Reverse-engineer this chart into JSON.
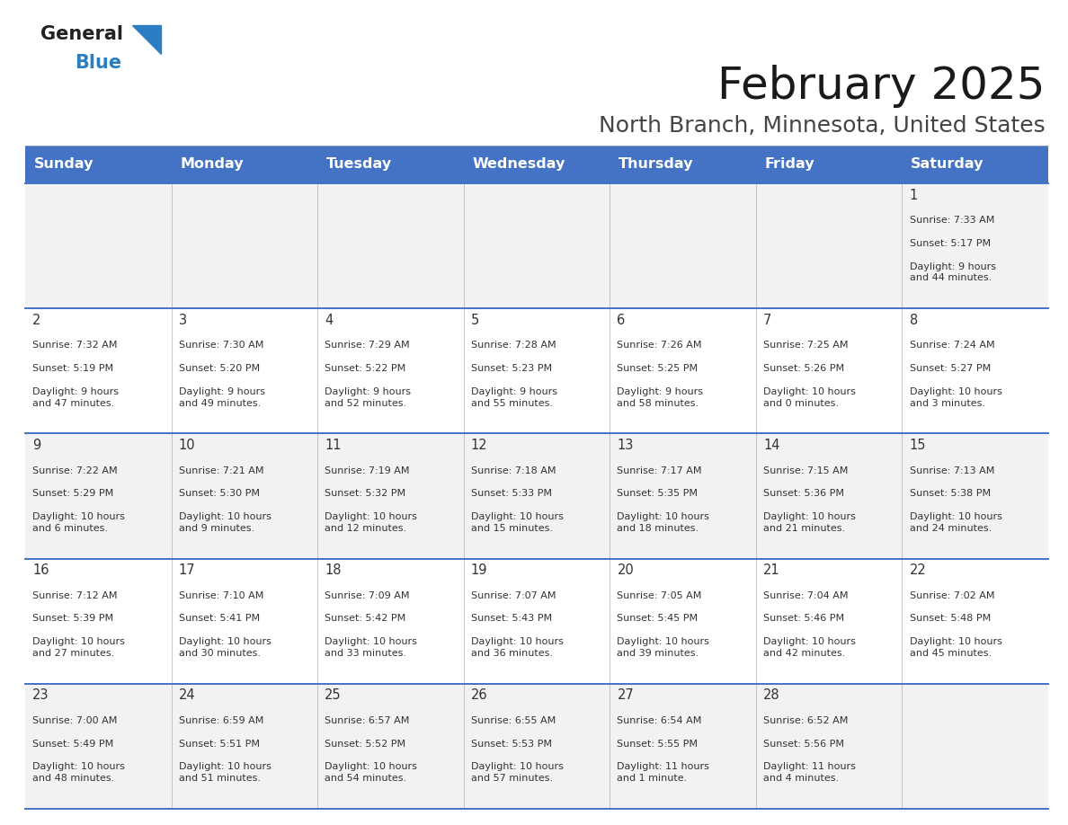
{
  "title": "February 2025",
  "subtitle": "North Branch, Minnesota, United States",
  "header_color": "#4472C4",
  "header_text_color": "#FFFFFF",
  "background_color": "#FFFFFF",
  "cell_bg_even": "#F2F2F2",
  "cell_bg_odd": "#FFFFFF",
  "line_color": "#4472C4",
  "days_of_week": [
    "Sunday",
    "Monday",
    "Tuesday",
    "Wednesday",
    "Thursday",
    "Friday",
    "Saturday"
  ],
  "calendar_data": [
    [
      {
        "day": "",
        "sunrise": "",
        "sunset": "",
        "daylight": ""
      },
      {
        "day": "",
        "sunrise": "",
        "sunset": "",
        "daylight": ""
      },
      {
        "day": "",
        "sunrise": "",
        "sunset": "",
        "daylight": ""
      },
      {
        "day": "",
        "sunrise": "",
        "sunset": "",
        "daylight": ""
      },
      {
        "day": "",
        "sunrise": "",
        "sunset": "",
        "daylight": ""
      },
      {
        "day": "",
        "sunrise": "",
        "sunset": "",
        "daylight": ""
      },
      {
        "day": "1",
        "sunrise": "Sunrise: 7:33 AM",
        "sunset": "Sunset: 5:17 PM",
        "daylight": "Daylight: 9 hours\nand 44 minutes."
      }
    ],
    [
      {
        "day": "2",
        "sunrise": "Sunrise: 7:32 AM",
        "sunset": "Sunset: 5:19 PM",
        "daylight": "Daylight: 9 hours\nand 47 minutes."
      },
      {
        "day": "3",
        "sunrise": "Sunrise: 7:30 AM",
        "sunset": "Sunset: 5:20 PM",
        "daylight": "Daylight: 9 hours\nand 49 minutes."
      },
      {
        "day": "4",
        "sunrise": "Sunrise: 7:29 AM",
        "sunset": "Sunset: 5:22 PM",
        "daylight": "Daylight: 9 hours\nand 52 minutes."
      },
      {
        "day": "5",
        "sunrise": "Sunrise: 7:28 AM",
        "sunset": "Sunset: 5:23 PM",
        "daylight": "Daylight: 9 hours\nand 55 minutes."
      },
      {
        "day": "6",
        "sunrise": "Sunrise: 7:26 AM",
        "sunset": "Sunset: 5:25 PM",
        "daylight": "Daylight: 9 hours\nand 58 minutes."
      },
      {
        "day": "7",
        "sunrise": "Sunrise: 7:25 AM",
        "sunset": "Sunset: 5:26 PM",
        "daylight": "Daylight: 10 hours\nand 0 minutes."
      },
      {
        "day": "8",
        "sunrise": "Sunrise: 7:24 AM",
        "sunset": "Sunset: 5:27 PM",
        "daylight": "Daylight: 10 hours\nand 3 minutes."
      }
    ],
    [
      {
        "day": "9",
        "sunrise": "Sunrise: 7:22 AM",
        "sunset": "Sunset: 5:29 PM",
        "daylight": "Daylight: 10 hours\nand 6 minutes."
      },
      {
        "day": "10",
        "sunrise": "Sunrise: 7:21 AM",
        "sunset": "Sunset: 5:30 PM",
        "daylight": "Daylight: 10 hours\nand 9 minutes."
      },
      {
        "day": "11",
        "sunrise": "Sunrise: 7:19 AM",
        "sunset": "Sunset: 5:32 PM",
        "daylight": "Daylight: 10 hours\nand 12 minutes."
      },
      {
        "day": "12",
        "sunrise": "Sunrise: 7:18 AM",
        "sunset": "Sunset: 5:33 PM",
        "daylight": "Daylight: 10 hours\nand 15 minutes."
      },
      {
        "day": "13",
        "sunrise": "Sunrise: 7:17 AM",
        "sunset": "Sunset: 5:35 PM",
        "daylight": "Daylight: 10 hours\nand 18 minutes."
      },
      {
        "day": "14",
        "sunrise": "Sunrise: 7:15 AM",
        "sunset": "Sunset: 5:36 PM",
        "daylight": "Daylight: 10 hours\nand 21 minutes."
      },
      {
        "day": "15",
        "sunrise": "Sunrise: 7:13 AM",
        "sunset": "Sunset: 5:38 PM",
        "daylight": "Daylight: 10 hours\nand 24 minutes."
      }
    ],
    [
      {
        "day": "16",
        "sunrise": "Sunrise: 7:12 AM",
        "sunset": "Sunset: 5:39 PM",
        "daylight": "Daylight: 10 hours\nand 27 minutes."
      },
      {
        "day": "17",
        "sunrise": "Sunrise: 7:10 AM",
        "sunset": "Sunset: 5:41 PM",
        "daylight": "Daylight: 10 hours\nand 30 minutes."
      },
      {
        "day": "18",
        "sunrise": "Sunrise: 7:09 AM",
        "sunset": "Sunset: 5:42 PM",
        "daylight": "Daylight: 10 hours\nand 33 minutes."
      },
      {
        "day": "19",
        "sunrise": "Sunrise: 7:07 AM",
        "sunset": "Sunset: 5:43 PM",
        "daylight": "Daylight: 10 hours\nand 36 minutes."
      },
      {
        "day": "20",
        "sunrise": "Sunrise: 7:05 AM",
        "sunset": "Sunset: 5:45 PM",
        "daylight": "Daylight: 10 hours\nand 39 minutes."
      },
      {
        "day": "21",
        "sunrise": "Sunrise: 7:04 AM",
        "sunset": "Sunset: 5:46 PM",
        "daylight": "Daylight: 10 hours\nand 42 minutes."
      },
      {
        "day": "22",
        "sunrise": "Sunrise: 7:02 AM",
        "sunset": "Sunset: 5:48 PM",
        "daylight": "Daylight: 10 hours\nand 45 minutes."
      }
    ],
    [
      {
        "day": "23",
        "sunrise": "Sunrise: 7:00 AM",
        "sunset": "Sunset: 5:49 PM",
        "daylight": "Daylight: 10 hours\nand 48 minutes."
      },
      {
        "day": "24",
        "sunrise": "Sunrise: 6:59 AM",
        "sunset": "Sunset: 5:51 PM",
        "daylight": "Daylight: 10 hours\nand 51 minutes."
      },
      {
        "day": "25",
        "sunrise": "Sunrise: 6:57 AM",
        "sunset": "Sunset: 5:52 PM",
        "daylight": "Daylight: 10 hours\nand 54 minutes."
      },
      {
        "day": "26",
        "sunrise": "Sunrise: 6:55 AM",
        "sunset": "Sunset: 5:53 PM",
        "daylight": "Daylight: 10 hours\nand 57 minutes."
      },
      {
        "day": "27",
        "sunrise": "Sunrise: 6:54 AM",
        "sunset": "Sunset: 5:55 PM",
        "daylight": "Daylight: 11 hours\nand 1 minute."
      },
      {
        "day": "28",
        "sunrise": "Sunrise: 6:52 AM",
        "sunset": "Sunset: 5:56 PM",
        "daylight": "Daylight: 11 hours\nand 4 minutes."
      },
      {
        "day": "",
        "sunrise": "",
        "sunset": "",
        "daylight": ""
      }
    ]
  ],
  "logo_general_color": "#222222",
  "logo_blue_color": "#2B7EC1",
  "logo_triangle_color": "#2B7EC1"
}
